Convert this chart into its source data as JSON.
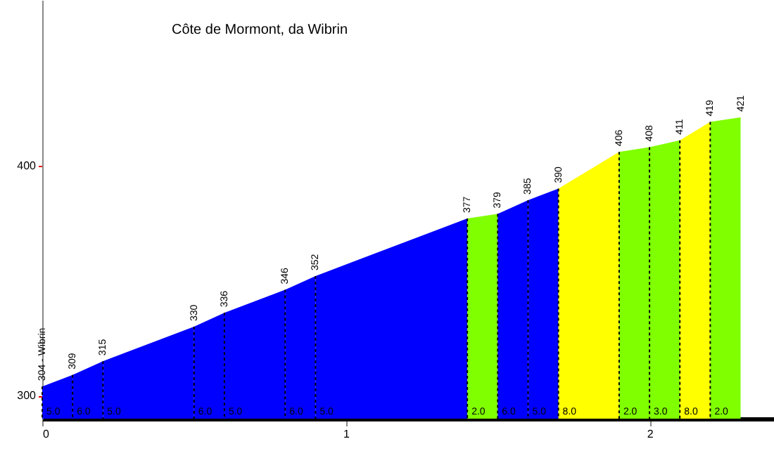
{
  "chart_data": {
    "type": "area",
    "title": "Côte de Mormont, da Wibrin",
    "xlim": [
      0,
      2.41
    ],
    "xticks": [
      0,
      1,
      2
    ],
    "ylim": [
      290,
      472
    ],
    "yticks": [
      300,
      400
    ],
    "grid": false,
    "series": [
      {
        "color": "#0000ff",
        "x": [
          0,
          0.1
        ],
        "values": [
          304,
          309
        ],
        "value_labels": [
          "304 - Wibrin",
          null
        ]
      },
      {
        "color": "#0000ff",
        "x": [
          0.1,
          0.2
        ],
        "values": [
          309,
          315
        ],
        "value_labels": [
          "309",
          null
        ]
      },
      {
        "color": "#0000ff",
        "x": [
          0.2,
          0.5
        ],
        "values": [
          315,
          330
        ],
        "value_labels": [
          "315",
          null
        ]
      },
      {
        "color": "#0000ff",
        "x": [
          0.5,
          0.6
        ],
        "values": [
          330,
          336
        ],
        "value_labels": [
          "330",
          null
        ]
      },
      {
        "color": "#0000ff",
        "x": [
          0.6,
          0.8
        ],
        "values": [
          336,
          346
        ],
        "value_labels": [
          "336",
          null
        ]
      },
      {
        "color": "#0000ff",
        "x": [
          0.8,
          0.9
        ],
        "values": [
          346,
          352
        ],
        "value_labels": [
          "346",
          null
        ]
      },
      {
        "color": "#0000ff",
        "x": [
          0.9,
          1.4
        ],
        "values": [
          352,
          377
        ],
        "value_labels": [
          "352",
          null
        ]
      },
      {
        "color": "#80ff00",
        "x": [
          1.4,
          1.5
        ],
        "values": [
          377,
          379
        ],
        "value_labels": [
          "377",
          null
        ]
      },
      {
        "color": "#0000ff",
        "x": [
          1.5,
          1.6
        ],
        "values": [
          379,
          385
        ],
        "value_labels": [
          "379",
          null
        ]
      },
      {
        "color": "#0000ff",
        "x": [
          1.6,
          1.7
        ],
        "values": [
          385,
          390
        ],
        "value_labels": [
          "385",
          null
        ]
      },
      {
        "color": "#ffff00",
        "x": [
          1.7,
          1.9
        ],
        "values": [
          390,
          406
        ],
        "value_labels": [
          "390",
          null
        ]
      },
      {
        "color": "#80ff00",
        "x": [
          1.9,
          2.0
        ],
        "values": [
          406,
          408
        ],
        "value_labels": [
          "406",
          null
        ]
      },
      {
        "color": "#80ff00",
        "x": [
          2.0,
          2.1
        ],
        "values": [
          408,
          411
        ],
        "value_labels": [
          "408",
          null
        ]
      },
      {
        "color": "#ffff00",
        "x": [
          2.1,
          2.2
        ],
        "values": [
          411,
          419
        ],
        "value_labels": [
          "411",
          null
        ]
      },
      {
        "color": "#80ff00",
        "x": [
          2.2,
          2.3
        ],
        "values": [
          419,
          421
        ],
        "value_labels": [
          "419",
          "421"
        ]
      }
    ],
    "annotations": [
      {
        "text": "5.0",
        "x": 0,
        "y": 304
      },
      {
        "text": "6.0",
        "x": 0.1,
        "y": 309
      },
      {
        "text": "5.0",
        "x": 0.2,
        "y": 315
      },
      {
        "text": "6.0",
        "x": 0.5,
        "y": 330
      },
      {
        "text": "5.0",
        "x": 0.6,
        "y": 336
      },
      {
        "text": "6.0",
        "x": 0.8,
        "y": 346
      },
      {
        "text": "5.0",
        "x": 0.9,
        "y": 352
      },
      {
        "text": "2.0",
        "x": 1.4,
        "y": 377
      },
      {
        "text": "6.0",
        "x": 1.5,
        "y": 379
      },
      {
        "text": "5.0",
        "x": 1.6,
        "y": 385
      },
      {
        "text": "8.0",
        "x": 1.7,
        "y": 390
      },
      {
        "text": "2.0",
        "x": 1.9,
        "y": 406
      },
      {
        "text": "3.0",
        "x": 2.0,
        "y": 408
      },
      {
        "text": "8.0",
        "x": 2.1,
        "y": 411
      },
      {
        "text": "2.0",
        "x": 2.2,
        "y": 419
      }
    ]
  }
}
